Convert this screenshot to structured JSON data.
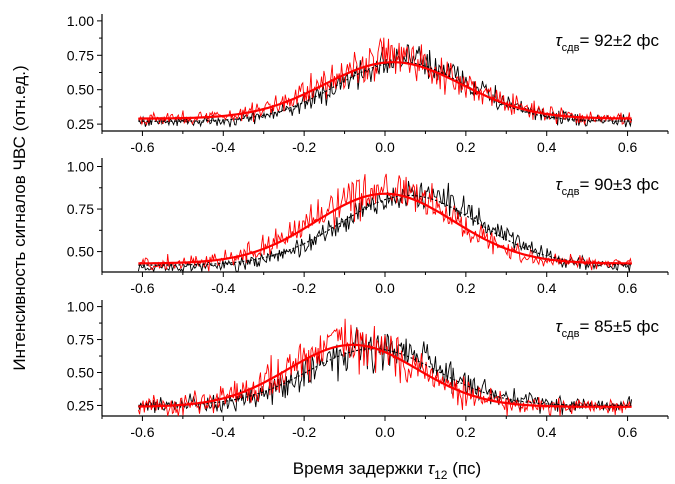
{
  "figure": {
    "ylabel": "Интенсивность сигналов ЧВС (отн.ед.)",
    "xlabel_main": "Время задержки ",
    "xlabel_symbol": "τ",
    "xlabel_subscript": "12",
    "xlabel_unit": " (пс)"
  },
  "chart_data": [
    {
      "type": "line",
      "annotation": {
        "symbol": "τ",
        "subscript": "сдв",
        "text": "= 92±2 фс"
      },
      "xlim": [
        -0.7,
        0.7
      ],
      "ylim": [
        0.2,
        1.05
      ],
      "xticks": [
        -0.6,
        -0.4,
        -0.2,
        0.0,
        0.2,
        0.4,
        0.6
      ],
      "xtick_labels": [
        "-0.6",
        "-0.4",
        "-0.2",
        "0.0",
        "0.2",
        "0.4",
        "0.6"
      ],
      "yticks": [
        0.25,
        0.5,
        0.75,
        1.0
      ],
      "ytick_labels": [
        "0.25",
        "0.50",
        "0.75",
        "1.00"
      ],
      "series": [
        {
          "color": "#000000",
          "style": "noisy",
          "x_range": [
            -0.61,
            0.61
          ],
          "baseline": 0.27,
          "peak": 0.72,
          "center": 0.05,
          "width": 0.16,
          "noise": 0.05
        },
        {
          "color": "#ff0000",
          "style": "noisy",
          "x_range": [
            -0.61,
            0.61
          ],
          "baseline": 0.29,
          "peak": 0.73,
          "center": 0.02,
          "width": 0.17,
          "noise": 0.06
        },
        {
          "color": "#000000",
          "style": "dotted-fit",
          "x_range": [
            -0.61,
            0.61
          ],
          "baseline": 0.27,
          "peak": 0.7,
          "center": 0.04,
          "width": 0.16
        },
        {
          "color": "#ff0000",
          "style": "fit",
          "x_range": [
            -0.61,
            0.61
          ],
          "baseline": 0.29,
          "peak": 0.7,
          "center": 0.02,
          "width": 0.17
        }
      ]
    },
    {
      "type": "line",
      "annotation": {
        "symbol": "τ",
        "subscript": "сдв",
        "text": "= 90±3 фс"
      },
      "xlim": [
        -0.7,
        0.7
      ],
      "ylim": [
        0.38,
        1.05
      ],
      "xticks": [
        -0.6,
        -0.4,
        -0.2,
        0.0,
        0.2,
        0.4,
        0.6
      ],
      "xtick_labels": [
        "-0.6",
        "-0.4",
        "-0.2",
        "0.0",
        "0.2",
        "0.4",
        "0.6"
      ],
      "yticks": [
        0.5,
        0.75,
        1.0
      ],
      "ytick_labels": [
        "0.50",
        "0.75",
        "1.00"
      ],
      "series": [
        {
          "color": "#000000",
          "style": "noisy",
          "x_range": [
            -0.61,
            0.61
          ],
          "baseline": 0.41,
          "peak": 0.84,
          "center": 0.07,
          "width": 0.17,
          "noise": 0.04
        },
        {
          "color": "#ff0000",
          "style": "noisy",
          "x_range": [
            -0.61,
            0.61
          ],
          "baseline": 0.43,
          "peak": 0.86,
          "center": 0.0,
          "width": 0.17,
          "noise": 0.05
        },
        {
          "color": "#000000",
          "style": "dotted-fit",
          "x_range": [
            -0.61,
            0.61
          ],
          "baseline": 0.42,
          "peak": 0.83,
          "center": 0.06,
          "width": 0.17
        },
        {
          "color": "#ff0000",
          "style": "fit",
          "x_range": [
            -0.61,
            0.61
          ],
          "baseline": 0.43,
          "peak": 0.84,
          "center": 0.0,
          "width": 0.17
        }
      ]
    },
    {
      "type": "line",
      "annotation": {
        "symbol": "τ",
        "subscript": "сдв",
        "text": "= 85±5 фс"
      },
      "xlim": [
        -0.7,
        0.7
      ],
      "ylim": [
        0.17,
        1.05
      ],
      "xticks": [
        -0.6,
        -0.4,
        -0.2,
        0.0,
        0.2,
        0.4,
        0.6
      ],
      "xtick_labels": [
        "-0.6",
        "-0.4",
        "-0.2",
        "0.0",
        "0.2",
        "0.4",
        "0.6"
      ],
      "yticks": [
        0.25,
        0.5,
        0.75,
        1.0
      ],
      "ytick_labels": [
        "0.25",
        "0.50",
        "0.75",
        "1.00"
      ],
      "series": [
        {
          "color": "#000000",
          "style": "noisy",
          "x_range": [
            -0.61,
            0.61
          ],
          "baseline": 0.25,
          "peak": 0.7,
          "center": -0.02,
          "width": 0.16,
          "noise": 0.07
        },
        {
          "color": "#ff0000",
          "style": "noisy",
          "x_range": [
            -0.61,
            0.61
          ],
          "baseline": 0.24,
          "peak": 0.72,
          "center": -0.08,
          "width": 0.16,
          "noise": 0.09
        },
        {
          "color": "#000000",
          "style": "dotted-fit",
          "x_range": [
            -0.61,
            0.61
          ],
          "baseline": 0.25,
          "peak": 0.68,
          "center": -0.03,
          "width": 0.16
        },
        {
          "color": "#ff0000",
          "style": "fit",
          "x_range": [
            -0.61,
            0.61
          ],
          "baseline": 0.24,
          "peak": 0.71,
          "center": -0.08,
          "width": 0.16
        }
      ]
    }
  ]
}
